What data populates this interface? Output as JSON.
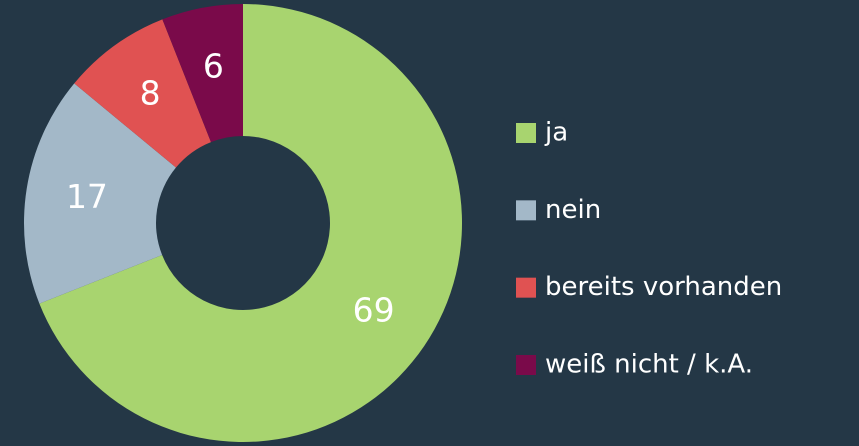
{
  "chart_data": {
    "type": "donut",
    "categories": [
      "ja",
      "nein",
      "bereits vorhanden",
      "weiß nicht / k.A."
    ],
    "values": [
      69,
      17,
      8,
      6
    ],
    "colors": [
      "#a8d46f",
      "#a3b8c8",
      "#e05252",
      "#7a0a4a"
    ],
    "legend": "right"
  }
}
